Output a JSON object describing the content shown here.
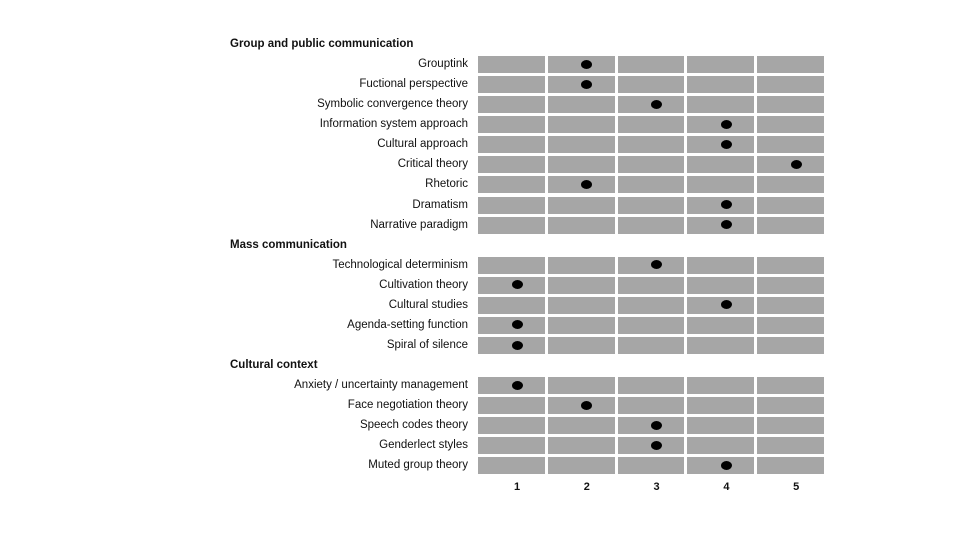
{
  "chart_data": {
    "type": "scatter",
    "x_ticks": [
      "1",
      "2",
      "3",
      "4",
      "5"
    ],
    "xlim": [
      1,
      5
    ],
    "grid": true,
    "groups": [
      {
        "name": "Group and public communication",
        "items": [
          {
            "label": "Grouptink",
            "value": 2
          },
          {
            "label": "Fuctional perspective",
            "value": 2
          },
          {
            "label": "Symbolic convergence theory",
            "value": 3
          },
          {
            "label": "Information system approach",
            "value": 4
          },
          {
            "label": "Cultural approach",
            "value": 4
          },
          {
            "label": "Critical theory",
            "value": 5
          },
          {
            "label": "Rhetoric",
            "value": 2
          },
          {
            "label": "Dramatism",
            "value": 4
          },
          {
            "label": "Narrative paradigm",
            "value": 4
          }
        ]
      },
      {
        "name": "Mass communication",
        "items": [
          {
            "label": "Technological determinism",
            "value": 3
          },
          {
            "label": "Cultivation theory",
            "value": 1
          },
          {
            "label": "Cultural studies",
            "value": 4
          },
          {
            "label": "Agenda-setting function",
            "value": 1
          },
          {
            "label": "Spiral of silence",
            "value": 1
          }
        ]
      },
      {
        "name": "Cultural context",
        "items": [
          {
            "label": "Anxiety / uncertainty management",
            "value": 1
          },
          {
            "label": "Face negotiation theory",
            "value": 2
          },
          {
            "label": "Speech codes theory",
            "value": 3
          },
          {
            "label": "Genderlect styles",
            "value": 3
          },
          {
            "label": "Muted group theory",
            "value": 4
          }
        ]
      }
    ],
    "colors": {
      "cell": "#a6a6a6",
      "marker": "#000000"
    }
  }
}
